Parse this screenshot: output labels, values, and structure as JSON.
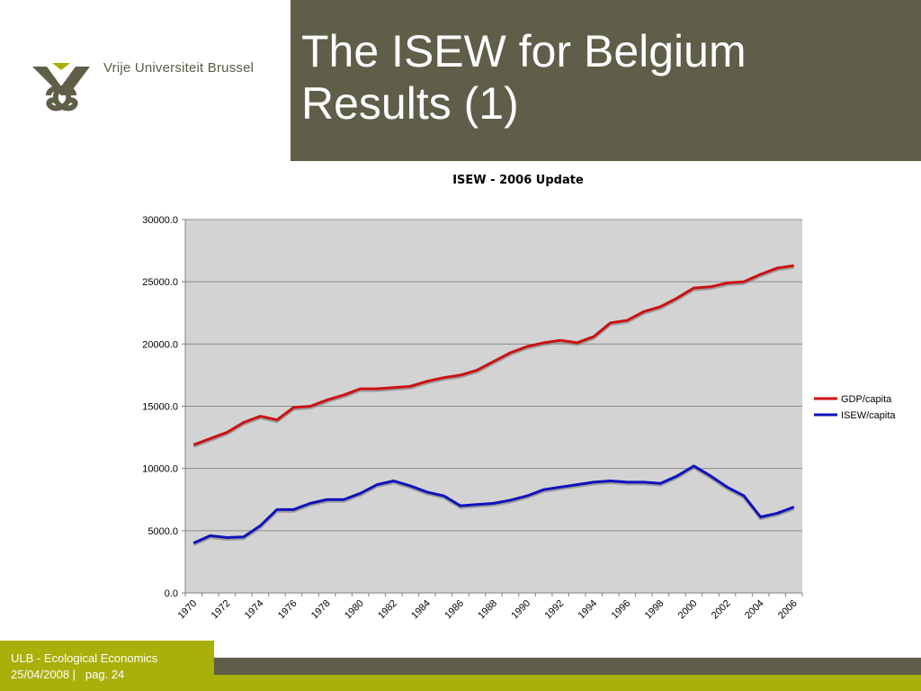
{
  "slide": {
    "title_line1": "The ISEW for Belgium",
    "title_line2": "Results (1)",
    "logo_text": "Vrije Universiteit Brussel",
    "footer_line1": "ULB - Ecological Economics",
    "footer_line2": "25/04/2008 |   pag. 24"
  },
  "colors": {
    "header_band": "#5e5e49",
    "accent_olive": "#a9b00a",
    "plot_background": "#d3d3d3",
    "gdp_line": "#cc1111",
    "isew_line": "#1111bb"
  },
  "chart_data": {
    "type": "line",
    "title": "ISEW - 2006 Update",
    "xlabel": "",
    "ylabel": "",
    "x": [
      1970,
      1971,
      1972,
      1973,
      1974,
      1975,
      1976,
      1977,
      1978,
      1979,
      1980,
      1981,
      1982,
      1983,
      1984,
      1985,
      1986,
      1987,
      1988,
      1989,
      1990,
      1991,
      1992,
      1993,
      1994,
      1995,
      1996,
      1997,
      1998,
      1999,
      2000,
      2001,
      2002,
      2003,
      2004,
      2005,
      2006
    ],
    "x_tick_labels": [
      "1970",
      "1972",
      "1974",
      "1976",
      "1978",
      "1980",
      "1982",
      "1984",
      "1986",
      "1988",
      "1990",
      "1992",
      "1994",
      "1996",
      "1998",
      "2000",
      "2002",
      "2004",
      "2006"
    ],
    "ylim": [
      0,
      30000
    ],
    "y_ticks": [
      0,
      5000,
      10000,
      15000,
      20000,
      25000,
      30000
    ],
    "y_tick_labels": [
      "0.0",
      "5000.0",
      "10000.0",
      "15000.0",
      "20000.0",
      "25000.0",
      "30000.0"
    ],
    "grid": "horizontal",
    "legend_position": "right",
    "series": [
      {
        "name": "GDP/capita",
        "color": "#cc1111",
        "values": [
          11900,
          12400,
          12900,
          13700,
          14200,
          13900,
          14900,
          15000,
          15500,
          15900,
          16400,
          16400,
          16500,
          16600,
          17000,
          17300,
          17500,
          17900,
          18600,
          19300,
          19800,
          20100,
          20300,
          20100,
          20600,
          21700,
          21900,
          22600,
          23000,
          23700,
          24500,
          24600,
          24900,
          25000,
          25600,
          26100,
          26300
        ]
      },
      {
        "name": "ISEW/capita",
        "color": "#1111bb",
        "values": [
          4000,
          4600,
          4450,
          4500,
          5400,
          6700,
          6700,
          7200,
          7500,
          7500,
          8000,
          8700,
          9000,
          8600,
          8100,
          7800,
          7000,
          7100,
          7200,
          7450,
          7800,
          8300,
          8500,
          8700,
          8900,
          9000,
          8900,
          8900,
          8800,
          9400,
          10200,
          9400,
          8500,
          7800,
          6100,
          6400,
          6900
        ]
      }
    ]
  }
}
